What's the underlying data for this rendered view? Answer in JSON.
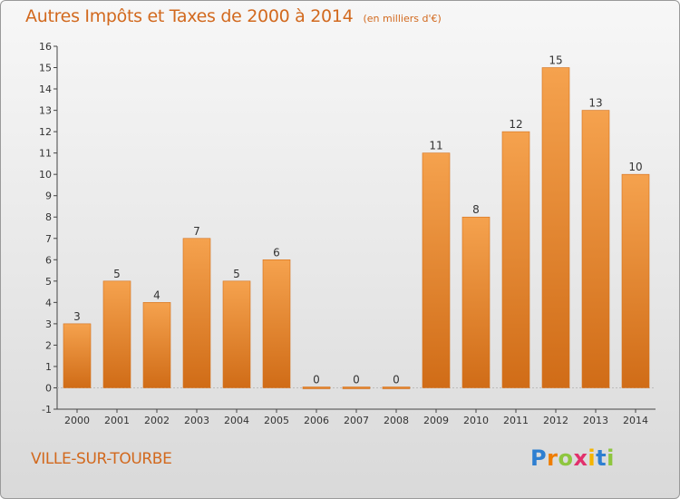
{
  "chart_data": {
    "type": "bar",
    "title": "Autres Impôts et Taxes de 2000 à 2014",
    "unit_note": "(en milliers d'€)",
    "categories": [
      "2000",
      "2001",
      "2002",
      "2003",
      "2004",
      "2005",
      "2006",
      "2007",
      "2008",
      "2009",
      "2010",
      "2011",
      "2012",
      "2013",
      "2014"
    ],
    "values": [
      3,
      5,
      4,
      7,
      5,
      6,
      0,
      0,
      0,
      11,
      8,
      12,
      15,
      13,
      10
    ],
    "data_labels": [
      "3",
      "5",
      "4",
      "7",
      "5",
      "6",
      "0",
      "0",
      "0",
      "11",
      "8",
      "12",
      "15",
      "13",
      "10"
    ],
    "ylim": [
      -1,
      16
    ],
    "yticks": [
      -1,
      0,
      1,
      2,
      3,
      4,
      5,
      6,
      7,
      8,
      9,
      10,
      11,
      12,
      13,
      14,
      15,
      16
    ],
    "grid": false,
    "bar_color": "#ee8a2c",
    "bar_color_dark": "#cf6a12"
  },
  "footer": {
    "city": "VILLE-SUR-TOURBE",
    "logo_letters": [
      "P",
      "r",
      "o",
      "x",
      "i",
      "t",
      "i"
    ]
  },
  "colors": {
    "accent": "#d2691e"
  }
}
